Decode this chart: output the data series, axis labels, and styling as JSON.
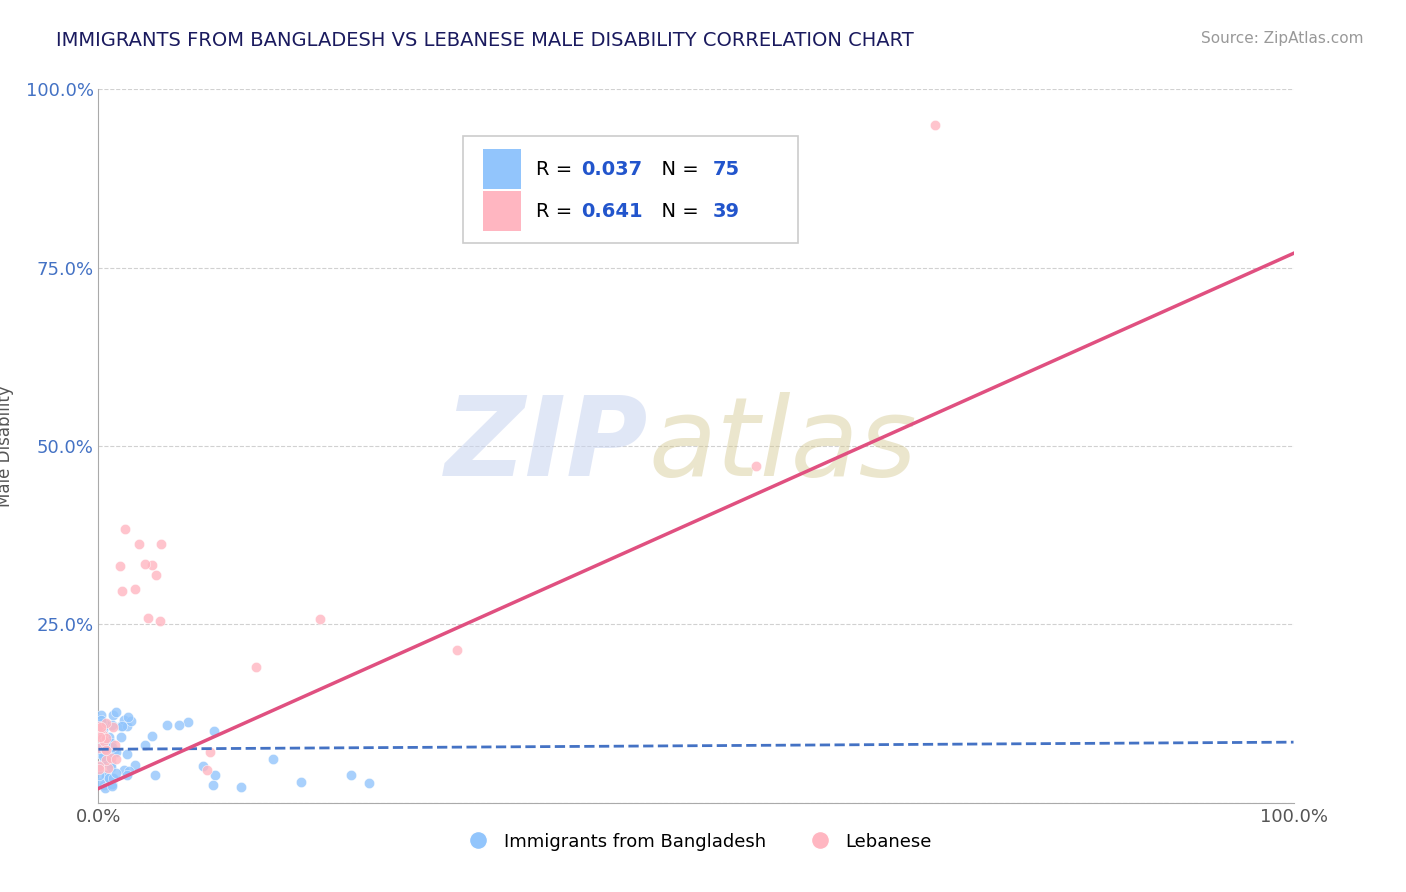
{
  "title": "IMMIGRANTS FROM BANGLADESH VS LEBANESE MALE DISABILITY CORRELATION CHART",
  "source": "Source: ZipAtlas.com",
  "ylabel": "Male Disability",
  "xlim": [
    0,
    1
  ],
  "ylim": [
    0,
    1
  ],
  "xtick_positions": [
    0,
    1.0
  ],
  "xtick_labels": [
    "0.0%",
    "100.0%"
  ],
  "ytick_positions": [
    0.0,
    0.25,
    0.5,
    0.75,
    1.0
  ],
  "ytick_labels": [
    "",
    "25.0%",
    "50.0%",
    "75.0%",
    "100.0%"
  ],
  "series1_label": "Immigrants from Bangladesh",
  "series1_color": "#92c5fc",
  "series1_R": "0.037",
  "series1_N": "75",
  "series2_label": "Lebanese",
  "series2_color": "#ffb6c1",
  "series2_R": "0.641",
  "series2_N": "39",
  "title_color": "#1a1a5e",
  "legend_R_color": "#2255cc",
  "legend_N_color": "#2255cc",
  "ytick_color": "#4472c4",
  "xtick_color": "#555555",
  "grid_color": "#cccccc",
  "trend1_color": "#4472c4",
  "trend2_color": "#e05080",
  "trend1_style": "--",
  "trend2_style": "-",
  "trend1_intercept": 0.075,
  "trend1_slope": 0.01,
  "trend2_intercept": 0.02,
  "trend2_slope": 0.75
}
